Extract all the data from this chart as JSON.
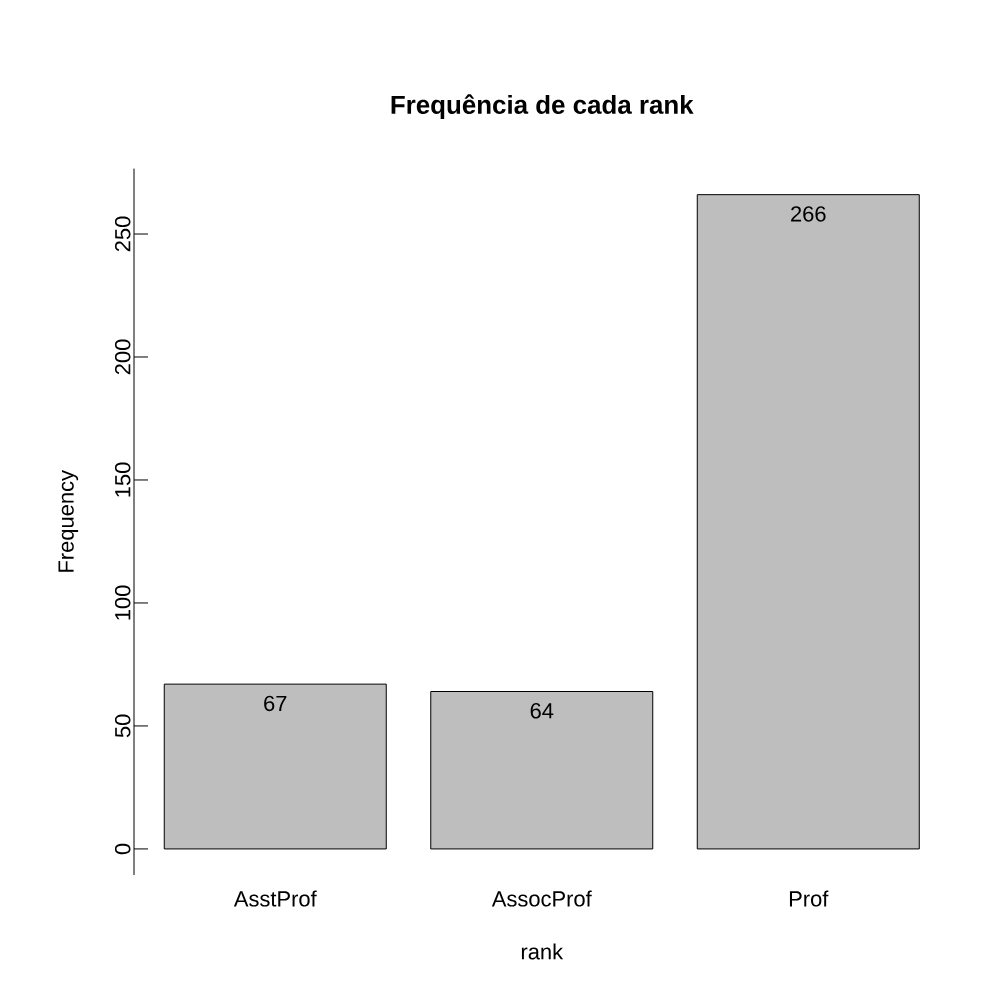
{
  "chart_data": {
    "type": "bar",
    "title": "Frequência de cada rank",
    "xlabel": "rank",
    "ylabel": "Frequency",
    "categories": [
      "AsstProf",
      "AssocProf",
      "Prof"
    ],
    "values": [
      67,
      64,
      266
    ],
    "color": "#bebebe",
    "ylim": [
      -10.6,
      276.6
    ],
    "yticks": [
      0,
      50,
      100,
      150,
      200,
      250
    ],
    "data_labels": true
  }
}
